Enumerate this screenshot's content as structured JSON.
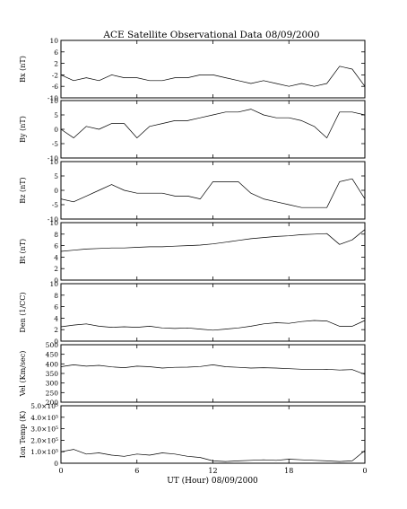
{
  "chart_data": {
    "title": "ACE Satellite Observational Data   08/09/2000",
    "xlabel": "UT (Hour)   08/09/2000",
    "x_ticks": [
      "0",
      "6",
      "12",
      "18",
      "0"
    ],
    "x_range": [
      0,
      24
    ],
    "x_tick_values": [
      0,
      6,
      12,
      18,
      24
    ],
    "panels": [
      {
        "type": "line",
        "ylabel": "Bx (nT)",
        "ylim": [
          -10,
          10
        ],
        "y_ticks": [
          "10",
          "6",
          "2",
          "-2",
          "-6",
          "-10"
        ],
        "y_tick_values": [
          10,
          6,
          2,
          -2,
          -6,
          -10
        ],
        "series": [
          {
            "x": [
              0,
              1,
              2,
              3,
              4,
              5,
              6,
              7,
              8,
              9,
              10,
              11,
              12,
              13,
              14,
              15,
              16,
              17,
              18,
              19,
              20,
              21,
              22,
              23,
              24
            ],
            "values": [
              -2,
              -4,
              -3,
              -4,
              -2,
              -3,
              -3,
              -4,
              -4,
              -3,
              -3,
              -2,
              -2,
              -3,
              -4,
              -5,
              -4,
              -5,
              -6,
              -5,
              -6,
              -5,
              1,
              0,
              -6
            ]
          }
        ]
      },
      {
        "type": "line",
        "ylabel": "By (nT)",
        "ylim": [
          -10,
          10
        ],
        "y_ticks": [
          "10",
          "5",
          "0",
          "-5",
          "-10"
        ],
        "y_tick_values": [
          10,
          5,
          0,
          -5,
          -10
        ],
        "series": [
          {
            "x": [
              0,
              1,
              2,
              3,
              4,
              5,
              6,
              7,
              8,
              9,
              10,
              11,
              12,
              13,
              14,
              15,
              16,
              17,
              18,
              19,
              20,
              21,
              22,
              23,
              24
            ],
            "values": [
              0,
              -3,
              1,
              0,
              2,
              2,
              -3,
              1,
              2,
              3,
              3,
              4,
              5,
              6,
              6,
              7,
              5,
              4,
              4,
              3,
              1,
              -3,
              6,
              6,
              5
            ]
          }
        ]
      },
      {
        "type": "line",
        "ylabel": "Bz (nT)",
        "ylim": [
          -10,
          10
        ],
        "y_ticks": [
          "10",
          "5",
          "0",
          "-5",
          "-10"
        ],
        "y_tick_values": [
          10,
          5,
          0,
          -5,
          -10
        ],
        "series": [
          {
            "x": [
              0,
              1,
              2,
              3,
              4,
              5,
              6,
              7,
              8,
              9,
              10,
              11,
              12,
              13,
              14,
              15,
              16,
              17,
              18,
              19,
              20,
              21,
              22,
              23,
              24
            ],
            "values": [
              -3,
              -4,
              -2,
              0,
              2,
              0,
              -1,
              -1,
              -1,
              -2,
              -2,
              -3,
              3,
              3,
              3,
              -1,
              -3,
              -4,
              -5,
              -6,
              -6,
              -6,
              3,
              4,
              -3
            ]
          }
        ]
      },
      {
        "type": "line",
        "ylabel": "Bt (nT)",
        "ylim": [
          0,
          10
        ],
        "y_ticks": [
          "10",
          "8",
          "6",
          "4",
          "2",
          "0"
        ],
        "y_tick_values": [
          10,
          8,
          6,
          4,
          2,
          0
        ],
        "series": [
          {
            "x": [
              0,
              1,
              2,
              3,
              4,
              5,
              6,
              7,
              8,
              9,
              10,
              11,
              12,
              13,
              14,
              15,
              16,
              17,
              18,
              19,
              20,
              21,
              22,
              23,
              24
            ],
            "values": [
              5,
              5.2,
              5.4,
              5.5,
              5.6,
              5.6,
              5.7,
              5.8,
              5.8,
              5.9,
              6,
              6.1,
              6.3,
              6.6,
              6.9,
              7.2,
              7.4,
              7.6,
              7.7,
              7.9,
              8,
              8.1,
              6.2,
              7,
              8.8
            ]
          }
        ]
      },
      {
        "type": "line",
        "ylabel": "Den (1/CC)",
        "ylim": [
          0,
          10
        ],
        "y_ticks": [
          "10",
          "8",
          "6",
          "4",
          "2",
          "0"
        ],
        "y_tick_values": [
          10,
          8,
          6,
          4,
          2,
          0
        ],
        "series": [
          {
            "x": [
              0,
              1,
              2,
              3,
              4,
              5,
              6,
              7,
              8,
              9,
              10,
              11,
              12,
              13,
              14,
              15,
              16,
              17,
              18,
              19,
              20,
              21,
              22,
              23,
              24
            ],
            "values": [
              2.5,
              2.8,
              3,
              2.6,
              2.4,
              2.5,
              2.4,
              2.6,
              2.3,
              2.2,
              2.3,
              2.1,
              1.9,
              2.1,
              2.3,
              2.6,
              3,
              3.2,
              3.1,
              3.4,
              3.6,
              3.5,
              2.6,
              2.6,
              3.6
            ]
          }
        ]
      },
      {
        "type": "line",
        "ylabel": "Vel (Km/sec)",
        "ylim": [
          200,
          500
        ],
        "y_ticks": [
          "500",
          "450",
          "400",
          "350",
          "300",
          "250",
          "200"
        ],
        "y_tick_values": [
          500,
          450,
          400,
          350,
          300,
          250,
          200
        ],
        "series": [
          {
            "x": [
              0,
              1,
              2,
              3,
              4,
              5,
              6,
              7,
              8,
              9,
              10,
              11,
              12,
              13,
              14,
              15,
              16,
              17,
              18,
              19,
              20,
              21,
              22,
              23,
              24
            ],
            "values": [
              385,
              395,
              388,
              392,
              384,
              380,
              388,
              385,
              378,
              382,
              383,
              386,
              395,
              385,
              382,
              378,
              380,
              378,
              375,
              372,
              370,
              372,
              368,
              370,
              345
            ]
          }
        ]
      },
      {
        "type": "line",
        "ylabel": "Ion Temp (K)",
        "ylim": [
          0,
          500000
        ],
        "y_ticks": [
          "5.0×10⁵",
          "4.0×10⁵",
          "3.0×10⁵",
          "2.0×10⁵",
          "1.0×10⁵",
          "0"
        ],
        "y_tick_values": [
          500000,
          400000,
          300000,
          200000,
          100000,
          0
        ],
        "series": [
          {
            "x": [
              0,
              1,
              2,
              3,
              4,
              5,
              6,
              7,
              8,
              9,
              10,
              11,
              12,
              13,
              14,
              15,
              16,
              17,
              18,
              19,
              20,
              21,
              22,
              23,
              24
            ],
            "values": [
              100000,
              120000,
              80000,
              90000,
              70000,
              60000,
              80000,
              70000,
              90000,
              80000,
              60000,
              50000,
              20000,
              15000,
              20000,
              25000,
              30000,
              25000,
              35000,
              30000,
              25000,
              20000,
              15000,
              20000,
              110000
            ]
          }
        ]
      }
    ]
  }
}
